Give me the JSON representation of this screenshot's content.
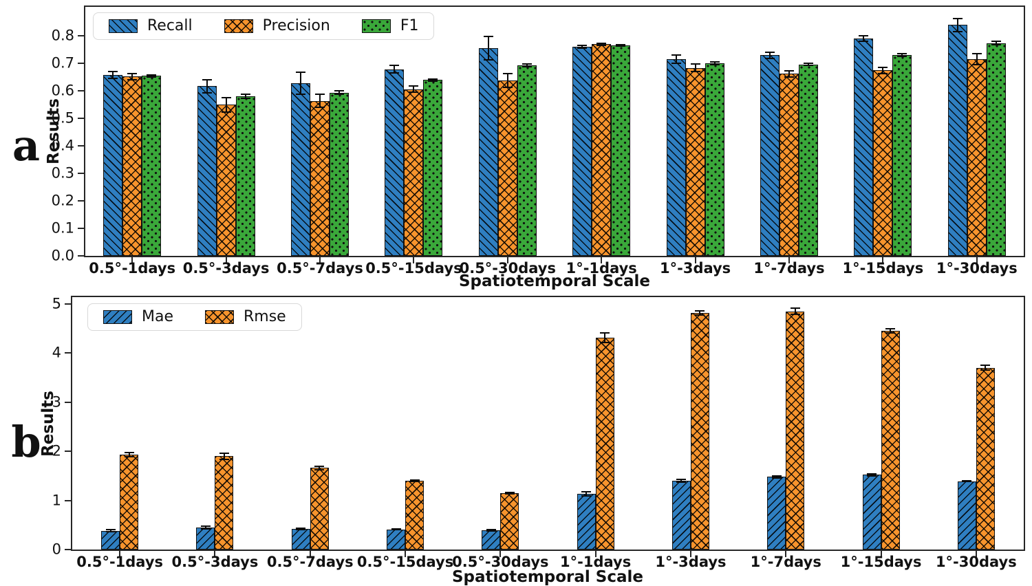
{
  "figure": {
    "background": "#ffffff",
    "axis_color": "#262626",
    "bar_edge_color": "#111111"
  },
  "chart_data": [
    {
      "type": "bar",
      "panel_label": "a",
      "title": "",
      "xlabel": "Spatiotemporal Scale",
      "ylabel": "Results",
      "ylim": [
        0,
        0.904
      ],
      "yticks": [
        0.0,
        0.1,
        0.2,
        0.3,
        0.4,
        0.5,
        0.6,
        0.7,
        0.8
      ],
      "ytick_labels": [
        "0.0",
        "0.1",
        "0.2",
        "0.3",
        "0.4",
        "0.5",
        "0.6",
        "0.7",
        "0.8"
      ],
      "grid": false,
      "legend_position": "upper-left",
      "categories": [
        "0.5°-1days",
        "0.5°-3days",
        "0.5°-7days",
        "0.5°-15days",
        "0.5°-30days",
        "1°-1days",
        "1°-3days",
        "1°-7days",
        "1°-15days",
        "1°-30days"
      ],
      "series": [
        {
          "name": "Recall",
          "color": "#2f7fc1",
          "hatch": "diagonal-back",
          "values": [
            0.657,
            0.616,
            0.627,
            0.678,
            0.754,
            0.76,
            0.714,
            0.728,
            0.788,
            0.838
          ],
          "errors": [
            0.013,
            0.024,
            0.04,
            0.013,
            0.042,
            0.005,
            0.015,
            0.012,
            0.01,
            0.023
          ]
        },
        {
          "name": "Precision",
          "color": "#f7942d",
          "hatch": "cross",
          "values": [
            0.651,
            0.549,
            0.563,
            0.605,
            0.637,
            0.768,
            0.683,
            0.661,
            0.674,
            0.715
          ],
          "errors": [
            0.012,
            0.026,
            0.024,
            0.011,
            0.026,
            0.004,
            0.013,
            0.012,
            0.011,
            0.02
          ]
        },
        {
          "name": "F1",
          "color": "#3aa83a",
          "hatch": "dots",
          "values": [
            0.654,
            0.579,
            0.593,
            0.639,
            0.692,
            0.764,
            0.699,
            0.695,
            0.728,
            0.772
          ],
          "errors": [
            0.004,
            0.008,
            0.007,
            0.004,
            0.005,
            0.003,
            0.004,
            0.004,
            0.005,
            0.006
          ]
        }
      ]
    },
    {
      "type": "bar",
      "panel_label": "b",
      "title": "",
      "xlabel": "Spatiotemporal Scale",
      "ylabel": "Results",
      "ylim": [
        0,
        5.14
      ],
      "yticks": [
        0,
        1,
        2,
        3,
        4,
        5
      ],
      "ytick_labels": [
        "0",
        "1",
        "2",
        "3",
        "4",
        "5"
      ],
      "grid": false,
      "legend_position": "upper-left",
      "categories": [
        "0.5°-1days",
        "0.5°-3days",
        "0.5°-7days",
        "0.5°-15days",
        "0.5°-30days",
        "1°-1days",
        "1°-3days",
        "1°-7days",
        "1°-15days",
        "1°-30days"
      ],
      "series": [
        {
          "name": "Mae",
          "color": "#2f7fc1",
          "hatch": "diagonal-fwd",
          "values": [
            0.38,
            0.45,
            0.42,
            0.41,
            0.39,
            1.13,
            1.4,
            1.48,
            1.52,
            1.39
          ],
          "errors": [
            0.02,
            0.03,
            0.02,
            0.01,
            0.01,
            0.04,
            0.03,
            0.02,
            0.02,
            0.01
          ]
        },
        {
          "name": "Rmse",
          "color": "#f7942d",
          "hatch": "cross",
          "values": [
            1.93,
            1.9,
            1.66,
            1.4,
            1.15,
            4.31,
            4.82,
            4.85,
            4.45,
            3.7
          ],
          "errors": [
            0.04,
            0.06,
            0.03,
            0.01,
            0.01,
            0.1,
            0.04,
            0.06,
            0.04,
            0.05
          ]
        }
      ]
    }
  ]
}
